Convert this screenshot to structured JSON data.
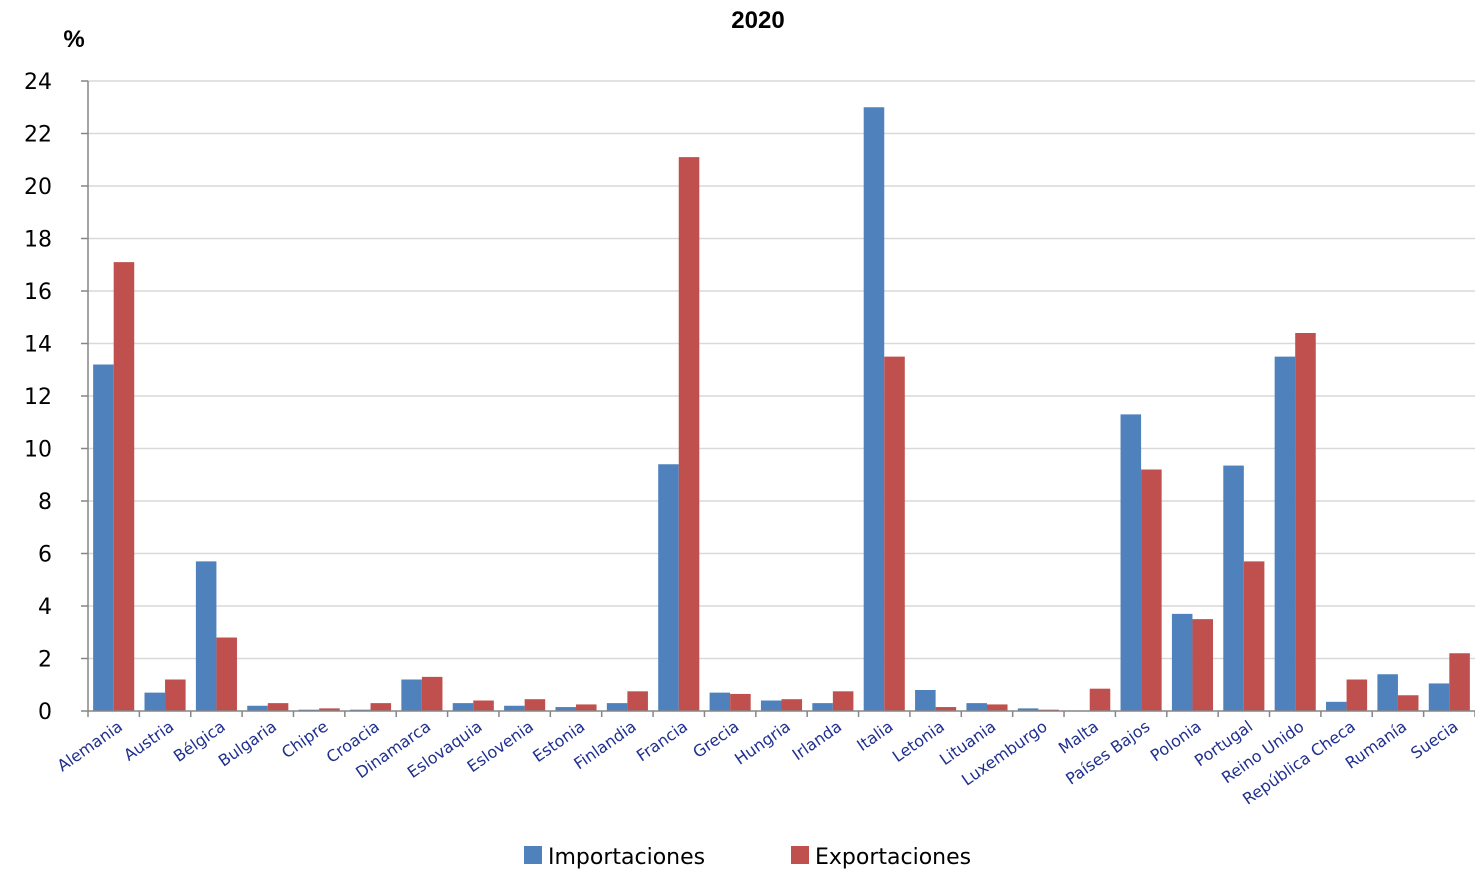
{
  "chart_data": {
    "type": "bar",
    "title": "2020",
    "ylabel": "%",
    "xlabel": "",
    "ylim": [
      0,
      24
    ],
    "yticks": [
      "0",
      "2",
      "4",
      "6",
      "8",
      "10",
      "12",
      "14",
      "16",
      "18",
      "20",
      "22",
      "24"
    ],
    "grid": true,
    "legend_position": "bottom",
    "categories": [
      "Alemania",
      "Austria",
      "Bélgica",
      "Bulgaria",
      "Chipre",
      "Croacia",
      "Dinamarca",
      "Eslovaquia",
      "Eslovenia",
      "Estonia",
      "Finlandia",
      "Francia",
      "Grecia",
      "Hungria",
      "Irlanda",
      "Italia",
      "Letonia",
      "Lituania",
      "Luxemburgo",
      "Malta",
      "Países Bajos",
      "Polonia",
      "Portugal",
      "Reino Unido",
      "República Checa",
      "Rumanía",
      "Suecia"
    ],
    "series": [
      {
        "name": "Importaciones",
        "color": "#4f81bd",
        "values": [
          13.2,
          0.7,
          5.7,
          0.2,
          0.05,
          0.05,
          1.2,
          0.3,
          0.2,
          0.15,
          0.3,
          9.4,
          0.7,
          0.4,
          0.3,
          23.0,
          0.8,
          0.3,
          0.1,
          0.02,
          11.3,
          3.7,
          9.35,
          13.5,
          0.35,
          1.4,
          1.05
        ]
      },
      {
        "name": "Exportaciones",
        "color": "#c0504d",
        "values": [
          17.1,
          1.2,
          2.8,
          0.3,
          0.1,
          0.3,
          1.3,
          0.4,
          0.45,
          0.25,
          0.75,
          21.1,
          0.65,
          0.45,
          0.75,
          13.5,
          0.15,
          0.25,
          0.05,
          0.85,
          9.2,
          3.5,
          5.7,
          14.4,
          1.2,
          0.6,
          2.2
        ]
      }
    ]
  }
}
